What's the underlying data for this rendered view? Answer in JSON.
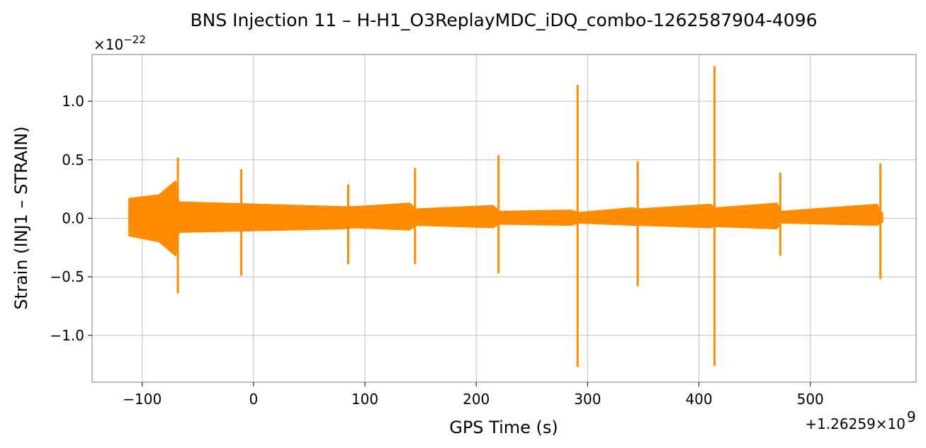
{
  "chart_data": {
    "type": "line",
    "title": "BNS Injection 11 – H-H1_O3ReplayMDC_iDQ_combo-1262587904-4096",
    "xlabel": "GPS Time (s)",
    "ylabel": "Strain (INJ1 – STRAIN)",
    "x_offset_label": "+1.26259×10",
    "x_offset_exp": "9",
    "y_scale_label": "×10",
    "y_scale_exp": "−22",
    "xlim": [
      -145,
      595
    ],
    "ylim": [
      -1.4,
      1.4
    ],
    "xticks": [
      -100,
      0,
      100,
      200,
      300,
      400,
      500
    ],
    "xtick_labels": [
      "−100",
      "0",
      "100",
      "200",
      "300",
      "400",
      "500"
    ],
    "yticks": [
      -1.0,
      -0.5,
      0.0,
      0.5,
      1.0
    ],
    "ytick_labels": [
      "−1.0",
      "−0.5",
      "0.0",
      "0.5",
      "1.0"
    ],
    "grid": true,
    "series": [
      {
        "color": "#ff8c00",
        "x_range": [
          -112,
          565
        ],
        "baseline_envelope": [
          {
            "x": -112,
            "upper": 0.17,
            "lower": -0.15
          },
          {
            "x": -85,
            "upper": 0.2,
            "lower": -0.2
          },
          {
            "x": -70,
            "upper": 0.32,
            "lower": -0.32
          },
          {
            "x": -67,
            "upper": 0.14,
            "lower": -0.12
          },
          {
            "x": 80,
            "upper": 0.1,
            "lower": -0.09
          },
          {
            "x": 90,
            "upper": 0.1,
            "lower": -0.08
          },
          {
            "x": 140,
            "upper": 0.13,
            "lower": -0.1
          },
          {
            "x": 146,
            "upper": 0.08,
            "lower": -0.06
          },
          {
            "x": 215,
            "upper": 0.11,
            "lower": -0.08
          },
          {
            "x": 221,
            "upper": 0.06,
            "lower": -0.05
          },
          {
            "x": 285,
            "upper": 0.07,
            "lower": -0.06
          },
          {
            "x": 292,
            "upper": 0.05,
            "lower": -0.04
          },
          {
            "x": 340,
            "upper": 0.09,
            "lower": -0.06
          },
          {
            "x": 346,
            "upper": 0.08,
            "lower": -0.06
          },
          {
            "x": 410,
            "upper": 0.12,
            "lower": -0.08
          },
          {
            "x": 415,
            "upper": 0.09,
            "lower": -0.07
          },
          {
            "x": 470,
            "upper": 0.13,
            "lower": -0.09
          },
          {
            "x": 474,
            "upper": 0.06,
            "lower": -0.04
          },
          {
            "x": 560,
            "upper": 0.12,
            "lower": -0.06
          },
          {
            "x": 565,
            "upper": 0.04,
            "lower": -0.03
          }
        ],
        "spikes": [
          {
            "x": -68,
            "max": 0.52,
            "min": -0.64
          },
          {
            "x": -11,
            "max": 0.42,
            "min": -0.49
          },
          {
            "x": 85,
            "max": 0.29,
            "min": -0.39
          },
          {
            "x": 145,
            "max": 0.43,
            "min": -0.39
          },
          {
            "x": 220,
            "max": 0.54,
            "min": -0.47
          },
          {
            "x": 291,
            "max": 1.14,
            "min": -1.27
          },
          {
            "x": 345,
            "max": 0.49,
            "min": -0.58
          },
          {
            "x": 414,
            "max": 1.3,
            "min": -1.26
          },
          {
            "x": 473,
            "max": 0.39,
            "min": -0.32
          },
          {
            "x": 563,
            "max": 0.47,
            "min": -0.52
          }
        ]
      }
    ]
  }
}
